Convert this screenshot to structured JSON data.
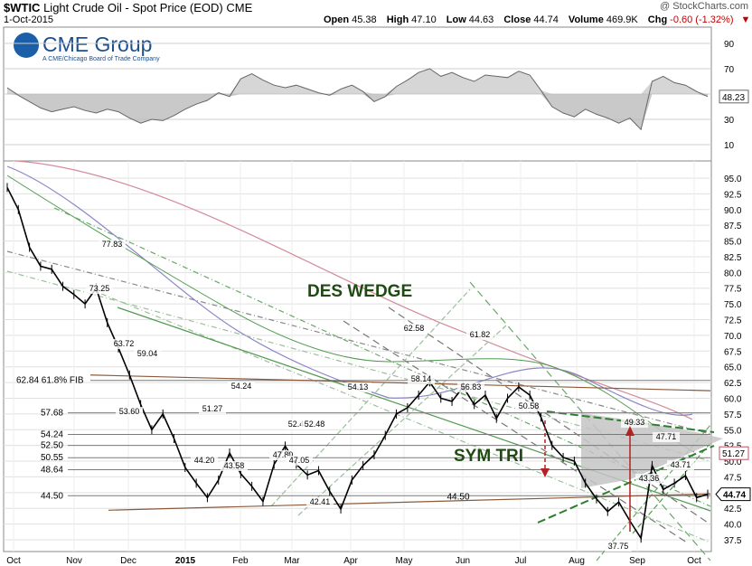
{
  "header": {
    "symbol": "$WTIC",
    "name": "Light Crude Oil - Spot Price (EOD)",
    "exchange": "CME",
    "date": "1-Oct-2015",
    "watermark": "@ StockCharts.com",
    "ohlc": {
      "open_label": "Open",
      "open": "45.38",
      "high_label": "High",
      "high": "47.10",
      "low_label": "Low",
      "low": "44.63",
      "close_label": "Close",
      "close": "44.74",
      "volume_label": "Volume",
      "volume": "469.9K",
      "chg_label": "Chg",
      "chg": "-0.60 (-1.32%)"
    }
  },
  "logo": {
    "brand": "CME Group",
    "tagline": "A CME/Chicago Board of Trade Company"
  },
  "colors": {
    "price": "#000000",
    "ma_red": "#d48a9a",
    "ma_blue": "#8a84c8",
    "ma_green": "#4e9a4e",
    "trend_green": "#2e7d2e",
    "trend_gray": "#777777",
    "fib_brown": "#8b5a3c",
    "arrow_red": "#b22222",
    "rsi_fill": "#bbbbbb",
    "triangle_fill": "#c4c4c4",
    "annotation_text": "#1f4a12"
  },
  "chart_data": [
    {
      "type": "line",
      "panel": "RSI",
      "y_ticks": [
        10,
        30,
        50,
        70,
        90
      ],
      "ylim": [
        0,
        100
      ],
      "last_value_label": "48.23",
      "series": [
        {
          "x_index": [
            0,
            4,
            8,
            12,
            16,
            20,
            24,
            28,
            32,
            36,
            40,
            44,
            48,
            52,
            56,
            60,
            64,
            68,
            72,
            76,
            80,
            84,
            88,
            92,
            96,
            100,
            104,
            108,
            112,
            116,
            120,
            124,
            128,
            132,
            136,
            140,
            144,
            148,
            152,
            156,
            160,
            164,
            168,
            172,
            176,
            180,
            184,
            188,
            192,
            196,
            200,
            204,
            208,
            212,
            216,
            220,
            224,
            228,
            232,
            236,
            240,
            244,
            248,
            252
          ],
          "values": [
            55,
            49,
            44,
            39,
            36,
            38,
            40,
            37,
            35,
            38,
            36,
            31,
            27,
            30,
            29,
            33,
            38,
            42,
            45,
            51,
            48,
            62,
            66,
            61,
            57,
            55,
            57,
            54,
            51,
            49,
            54,
            57,
            52,
            44,
            48,
            56,
            61,
            67,
            70,
            64,
            67,
            63,
            60,
            65,
            64,
            63,
            68,
            65,
            53,
            40,
            35,
            32,
            38,
            34,
            31,
            27,
            31,
            22,
            60,
            64,
            59,
            57,
            52,
            48
          ]
        }
      ]
    },
    {
      "type": "line",
      "panel": "price",
      "ylim": [
        37,
        96
      ],
      "y_ticks": [
        "95.0",
        "92.5",
        "90.0",
        "87.5",
        "85.0",
        "82.5",
        "80.0",
        "77.5",
        "75.0",
        "72.5",
        "70.0",
        "67.5",
        "65.0",
        "62.5",
        "60.0",
        "57.5",
        "55.0",
        "52.5",
        "50.0",
        "47.5",
        "45.0",
        "42.5",
        "40.0",
        "37.5"
      ],
      "x_labels": [
        "Oct",
        "Nov",
        "Dec",
        "2015",
        "Feb",
        "Mar",
        "Apr",
        "May",
        "Jun",
        "Jul",
        "Aug",
        "Sep",
        "Oct"
      ],
      "series": [
        {
          "name": "$WTIC",
          "x_index": [
            0,
            4,
            8,
            12,
            16,
            20,
            24,
            28,
            32,
            36,
            40,
            44,
            48,
            52,
            56,
            60,
            64,
            68,
            72,
            76,
            80,
            84,
            88,
            92,
            96,
            100,
            104,
            108,
            112,
            116,
            120,
            124,
            128,
            132,
            136,
            140,
            144,
            148,
            152,
            156,
            160,
            164,
            168,
            172,
            176,
            180,
            184,
            188,
            192,
            196,
            200,
            204,
            208,
            212,
            216,
            220,
            224,
            228,
            232,
            236,
            240,
            244,
            248,
            252
          ],
          "values": [
            93.5,
            90,
            84,
            81,
            80.5,
            77.8,
            76.5,
            75,
            77.5,
            72,
            68,
            63.7,
            59,
            55,
            57.5,
            53.6,
            49,
            46.5,
            44.2,
            47,
            51.3,
            48,
            46,
            43.6,
            49.5,
            52.4,
            49.5,
            47.8,
            48.5,
            45.2,
            42.4,
            47,
            49.3,
            51,
            54.1,
            57.5,
            58.5,
            60.5,
            62.6,
            60,
            59.5,
            61.8,
            59,
            60.5,
            56.8,
            60,
            61.8,
            60.5,
            57,
            52.5,
            50.6,
            50,
            46.5,
            44,
            42,
            43.5,
            40.5,
            37.75,
            49.3,
            45.5,
            46.5,
            47.7,
            44.2,
            44.74
          ]
        }
      ],
      "peak_trough_labels": [
        "77.83",
        "73.25",
        "63.72",
        "59.04",
        "53.60",
        "51.27",
        "54.24",
        "44.20",
        "43.58",
        "47.80",
        "52.40",
        "52.48",
        "47.05",
        "42.41",
        "54.13",
        "62.58",
        "58.14",
        "61.82",
        "56.83",
        "50.58",
        "49.33",
        "47.71",
        "43.36",
        "43.71",
        "37.75"
      ],
      "horizontal_levels": [
        {
          "label": "62.84  61.8% FIB",
          "value": 62.84
        },
        {
          "label": "57.68",
          "value": 57.68
        },
        {
          "label": "54.24",
          "value": 54.24
        },
        {
          "label": "52.50",
          "value": 52.5
        },
        {
          "label": "50.55",
          "value": 50.55
        },
        {
          "label": "48.64",
          "value": 48.64
        },
        {
          "label": "44.50",
          "value": 44.5
        }
      ],
      "support_label": "44.50",
      "last_ma_label": "51.27",
      "last_price_label": "44.74",
      "annotations": [
        "DES WEDGE",
        "SYM TRI"
      ]
    }
  ]
}
